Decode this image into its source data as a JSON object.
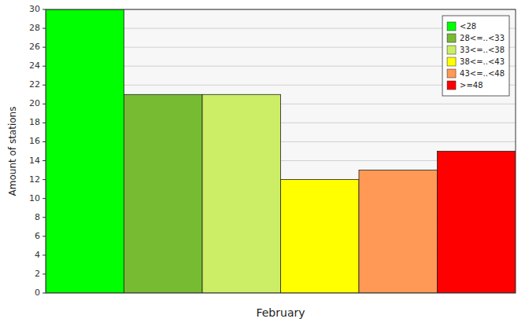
{
  "chart_data": {
    "type": "bar",
    "categories": [
      "<28",
      "28<=..<33",
      "33<=..<38",
      "38<=..<43",
      "43<=..<48",
      ">=48"
    ],
    "values": [
      30,
      21,
      21,
      12,
      13,
      15
    ],
    "colors": [
      "#00FF00",
      "#77BB33",
      "#CCEE66",
      "#FFFF00",
      "#FF9955",
      "#FF0000"
    ],
    "xlabel": "February",
    "ylabel": "Amount of stations",
    "ylim": [
      0,
      30
    ],
    "yticks": [
      0,
      2,
      4,
      6,
      8,
      10,
      12,
      14,
      16,
      18,
      20,
      22,
      24,
      26,
      28,
      30
    ],
    "grid": true,
    "legend": "upper right",
    "tick_labels": "y"
  }
}
